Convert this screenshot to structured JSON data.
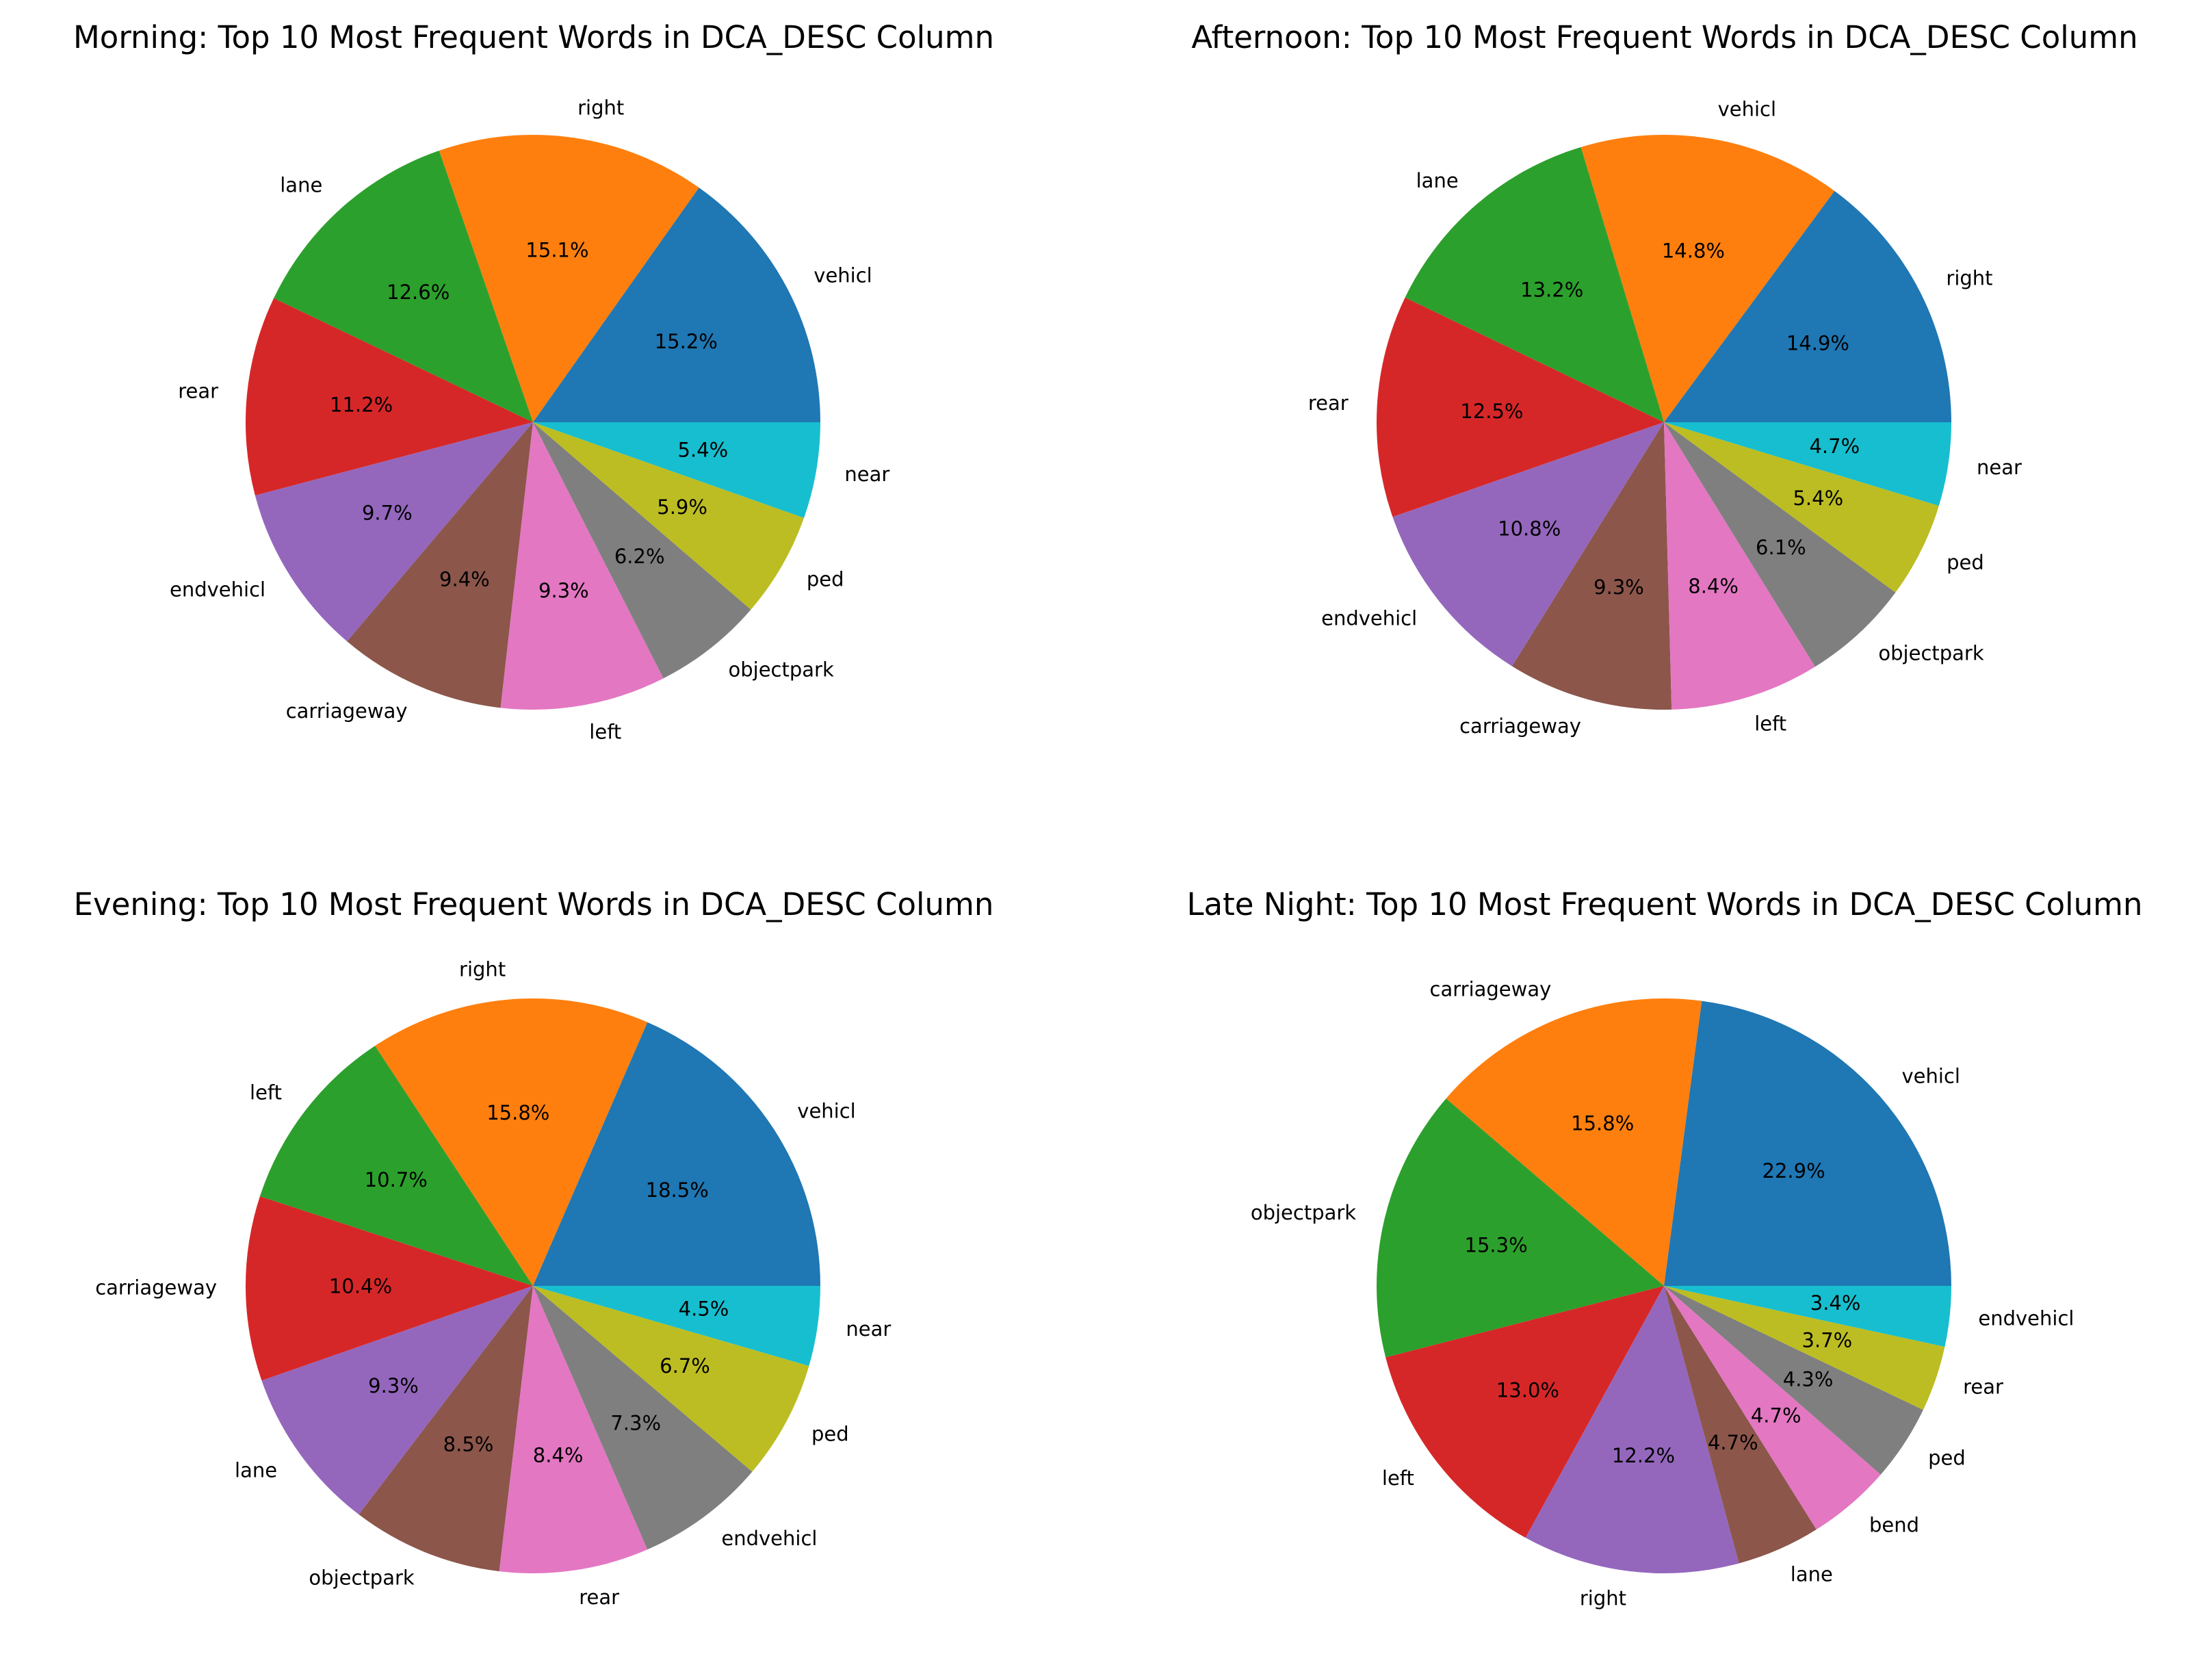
{
  "figure": {
    "colors": [
      "#1f77b4",
      "#ff7f0e",
      "#2ca02c",
      "#d62728",
      "#9467bd",
      "#8c564b",
      "#e377c2",
      "#7f7f7f",
      "#bcbd22",
      "#17becf"
    ]
  },
  "chart_data": [
    {
      "type": "pie",
      "title": "Morning: Top 10 Most Frequent Words in DCA_DESC Column",
      "labels": [
        "vehicl",
        "right",
        "lane",
        "rear",
        "endvehicl",
        "carriageway",
        "left",
        "objectpark",
        "ped",
        "near"
      ],
      "values": [
        15.2,
        15.1,
        12.6,
        11.2,
        9.7,
        9.4,
        9.3,
        6.2,
        5.9,
        5.4
      ],
      "pct_labels": [
        "15.2%",
        "15.1%",
        "12.6%",
        "11.2%",
        "9.7%",
        "9.4%",
        "9.3%",
        "6.2%",
        "5.9%",
        "5.4%"
      ],
      "start_angle_deg": 0,
      "direction": "counterclockwise"
    },
    {
      "type": "pie",
      "title": "Afternoon: Top 10 Most Frequent Words in DCA_DESC Column",
      "labels": [
        "right",
        "vehicl",
        "lane",
        "rear",
        "endvehicl",
        "carriageway",
        "left",
        "objectpark",
        "ped",
        "near"
      ],
      "values": [
        14.9,
        14.8,
        13.2,
        12.5,
        10.8,
        9.3,
        8.4,
        6.1,
        5.4,
        4.7
      ],
      "pct_labels": [
        "14.9%",
        "14.8%",
        "13.2%",
        "12.5%",
        "10.8%",
        "9.3%",
        "8.4%",
        "6.1%",
        "5.4%",
        "4.7%"
      ],
      "start_angle_deg": 0,
      "direction": "counterclockwise"
    },
    {
      "type": "pie",
      "title": "Evening: Top 10 Most Frequent Words in DCA_DESC Column",
      "labels": [
        "vehicl",
        "right",
        "left",
        "carriageway",
        "lane",
        "objectpark",
        "rear",
        "endvehicl",
        "ped",
        "near"
      ],
      "values": [
        18.5,
        15.8,
        10.7,
        10.4,
        9.3,
        8.5,
        8.4,
        7.3,
        6.7,
        4.5
      ],
      "pct_labels": [
        "18.5%",
        "15.8%",
        "10.7%",
        "10.4%",
        "9.3%",
        "8.5%",
        "8.4%",
        "7.3%",
        "6.7%",
        "4.5%"
      ],
      "start_angle_deg": 0,
      "direction": "counterclockwise"
    },
    {
      "type": "pie",
      "title": "Late Night: Top 10 Most Frequent Words in DCA_DESC Column",
      "labels": [
        "vehicl",
        "carriageway",
        "objectpark",
        "left",
        "right",
        "lane",
        "bend",
        "ped",
        "rear",
        "endvehicl"
      ],
      "values": [
        22.9,
        15.8,
        15.3,
        13.0,
        12.2,
        4.7,
        4.7,
        4.3,
        3.7,
        3.4
      ],
      "pct_labels": [
        "22.9%",
        "15.8%",
        "15.3%",
        "13.0%",
        "12.2%",
        "4.7%",
        "4.7%",
        "4.3%",
        "3.7%",
        "3.4%"
      ],
      "start_angle_deg": 0,
      "direction": "counterclockwise"
    }
  ]
}
